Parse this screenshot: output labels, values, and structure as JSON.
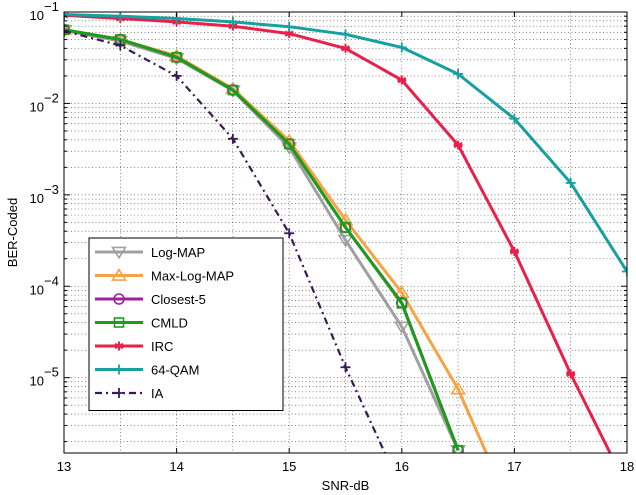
{
  "chart_data": {
    "type": "line",
    "xlabel": "SNR-dB",
    "ylabel": "BER-Coded",
    "xlim": [
      13,
      18
    ],
    "ylim": [
      1.5e-06,
      0.1
    ],
    "yscale": "log",
    "grid": true,
    "legend_position": "bottom-left",
    "x_ticks": [
      {
        "value": 13,
        "label": "13"
      },
      {
        "value": 14,
        "label": "14"
      },
      {
        "value": 15,
        "label": "15"
      },
      {
        "value": 16,
        "label": "16"
      },
      {
        "value": 17,
        "label": "17"
      },
      {
        "value": 18,
        "label": "18"
      }
    ],
    "y_ticks": [
      {
        "value": 0.1,
        "base": "10",
        "exp": "−1"
      },
      {
        "value": 0.01,
        "base": "10",
        "exp": "−2"
      },
      {
        "value": 0.001,
        "base": "10",
        "exp": "−3"
      },
      {
        "value": 0.0001,
        "base": "10",
        "exp": "−4"
      },
      {
        "value": 1e-05,
        "base": "10",
        "exp": "−5"
      }
    ],
    "series": [
      {
        "name": "Log-MAP",
        "color": "#a0a0a0",
        "marker": "triangle-down",
        "dash": "solid",
        "x": [
          13,
          13.5,
          14,
          14.5,
          15,
          15.5,
          16,
          16.5
        ],
        "y": [
          0.063,
          0.048,
          0.031,
          0.0138,
          0.0033,
          0.00032,
          3.6e-05,
          1.6e-06
        ]
      },
      {
        "name": "Max-Log-MAP",
        "color": "#f7a343",
        "marker": "triangle-up",
        "dash": "solid",
        "x": [
          13,
          13.5,
          14,
          14.5,
          15,
          15.5,
          16,
          16.5,
          16.75
        ],
        "y": [
          0.064,
          0.05,
          0.033,
          0.0145,
          0.0039,
          0.00053,
          8.5e-05,
          7.5e-06,
          1.5e-06
        ]
      },
      {
        "name": "Closest-5",
        "color": "#a020a0",
        "marker": "circle",
        "dash": "solid",
        "x": [
          13,
          13.5,
          14,
          14.5,
          15,
          15.5,
          16,
          16.5
        ],
        "y": [
          0.064,
          0.05,
          0.032,
          0.014,
          0.0036,
          0.00044,
          6.6e-05,
          1.6e-06
        ]
      },
      {
        "name": "CMLD",
        "color": "#1a9e1a",
        "marker": "square",
        "dash": "solid",
        "x": [
          13,
          13.5,
          14,
          14.5,
          15,
          15.5,
          16,
          16.5
        ],
        "y": [
          0.064,
          0.05,
          0.032,
          0.014,
          0.0036,
          0.00044,
          6.5e-05,
          1.6e-06
        ]
      },
      {
        "name": "IRC",
        "color": "#e8204a",
        "marker": "asterisk",
        "dash": "solid",
        "x": [
          13,
          13.5,
          14,
          14.5,
          15,
          15.5,
          16,
          16.5,
          17,
          17.5,
          17.85
        ],
        "y": [
          0.092,
          0.085,
          0.078,
          0.07,
          0.058,
          0.04,
          0.018,
          0.0035,
          0.00024,
          1.1e-05,
          1.5e-06
        ]
      },
      {
        "name": "64-QAM",
        "color": "#16a0a0",
        "marker": "plus",
        "dash": "solid",
        "x": [
          13,
          13.5,
          14,
          14.5,
          15,
          15.5,
          16,
          16.5,
          17,
          17.5,
          18
        ],
        "y": [
          0.094,
          0.09,
          0.085,
          0.078,
          0.069,
          0.057,
          0.041,
          0.021,
          0.0068,
          0.00135,
          0.000145
        ]
      },
      {
        "name": "IA",
        "color": "#3a1a55",
        "marker": "plus",
        "dash": "dashdot",
        "x": [
          13,
          13.5,
          14,
          14.5,
          15,
          15.5,
          15.85
        ],
        "y": [
          0.062,
          0.043,
          0.02,
          0.0041,
          0.00038,
          1.3e-05,
          1.5e-06
        ]
      }
    ]
  }
}
